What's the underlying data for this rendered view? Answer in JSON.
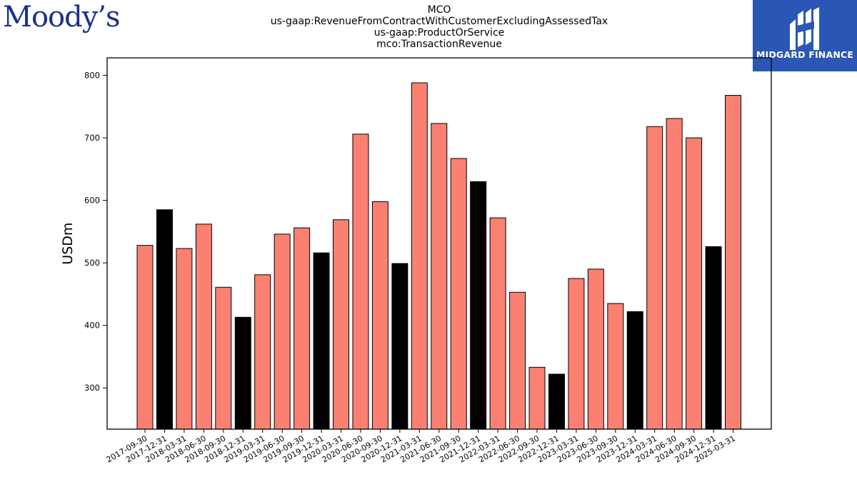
{
  "brand_left": "Moody’s",
  "brand_right": "MIDGARD FINANCE",
  "chart_data": {
    "type": "bar",
    "title_lines": [
      "MCO",
      "us-gaap:RevenueFromContractWithCustomerExcludingAssessedTax",
      "us-gaap:ProductOrService",
      "mco:TransactionRevenue"
    ],
    "xlabel": "",
    "ylabel": "USDm",
    "ylim": [
      234,
      828
    ],
    "yticks": [
      300,
      400,
      500,
      600,
      700,
      800
    ],
    "categories": [
      "2017-09-30",
      "2017-12-31",
      "2018-03-31",
      "2018-06-30",
      "2018-09-30",
      "2018-12-31",
      "2019-03-31",
      "2019-06-30",
      "2019-09-30",
      "2019-12-31",
      "2020-03-31",
      "2020-06-30",
      "2020-09-30",
      "2020-12-31",
      "2021-03-31",
      "2021-06-30",
      "2021-09-30",
      "2021-12-31",
      "2022-03-31",
      "2022-06-30",
      "2022-09-30",
      "2022-12-31",
      "2023-03-31",
      "2023-06-30",
      "2023-09-30",
      "2023-12-31",
      "2024-03-31",
      "2024-06-30",
      "2024-09-30",
      "2024-12-31",
      "2025-03-31"
    ],
    "values": [
      528,
      585,
      523,
      562,
      461,
      413,
      481,
      546,
      556,
      516,
      569,
      706,
      598,
      499,
      788,
      723,
      667,
      630,
      572,
      453,
      333,
      322,
      475,
      490,
      435,
      422,
      718,
      731,
      700,
      526,
      768
    ],
    "colors": {
      "quarter": "#fa8072",
      "year_end": "#000000",
      "edge": "#000000"
    },
    "grid": false
  }
}
